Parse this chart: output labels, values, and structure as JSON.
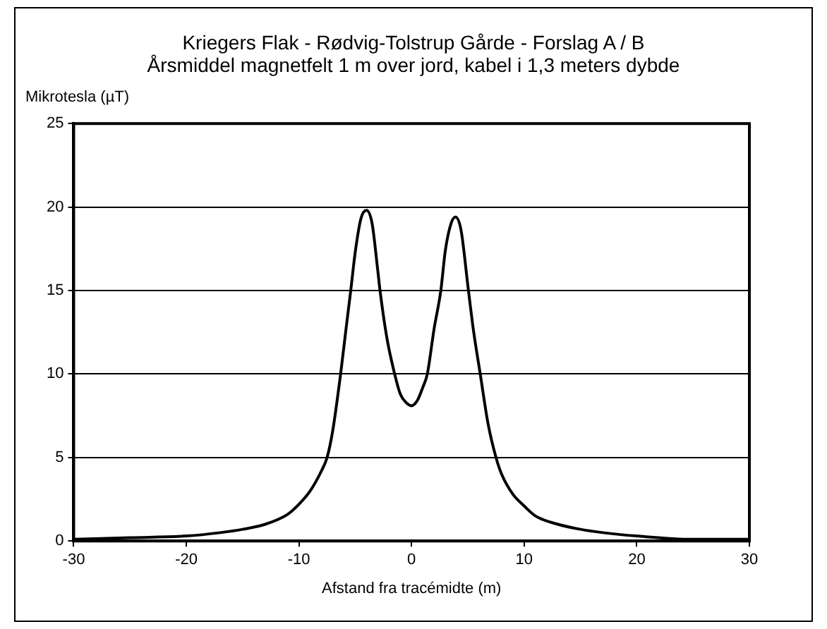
{
  "chart_data": {
    "type": "line",
    "title": "Kriegers Flak - Rødvig-Tolstrup Gårde - Forslag A / B",
    "subtitle": "Årsmiddel magnetfelt 1 m over jord, kabel i 1,3 meters dybde",
    "xlabel": "Afstand fra tracémidte (m)",
    "ylabel": "Mikrotesla (µT)",
    "series": [
      {
        "color": "#000000",
        "x": [
          -30,
          -25,
          -20,
          -17,
          -15,
          -13,
          -11,
          -10,
          -9,
          -8,
          -7.5,
          -7,
          -6.3,
          -5.8,
          -5.4,
          -5,
          -4.5,
          -4,
          -3.5,
          -3,
          -2.8,
          -2.2,
          -1.5,
          -1,
          -0.5,
          0,
          0.5,
          1,
          1.4,
          2,
          2.6,
          3,
          3.5,
          3.9,
          4.4,
          5,
          5.5,
          6.1,
          6.8,
          7.5,
          8,
          9,
          10,
          11,
          13,
          15,
          17,
          20,
          25,
          30
        ],
        "values": [
          0.1,
          0.2,
          0.3,
          0.5,
          0.7,
          1.0,
          1.6,
          2.2,
          3.0,
          4.2,
          5.0,
          6.6,
          10.0,
          12.8,
          15.0,
          17.3,
          19.3,
          19.8,
          19.0,
          16.2,
          15.0,
          12.2,
          10.0,
          8.8,
          8.3,
          8.1,
          8.4,
          9.2,
          10.0,
          12.7,
          15.0,
          17.4,
          19.0,
          19.4,
          18.6,
          15.3,
          12.6,
          10.0,
          7.0,
          5.0,
          4.0,
          2.8,
          2.1,
          1.5,
          1.0,
          0.7,
          0.5,
          0.3,
          0.1,
          0.1
        ]
      }
    ],
    "xlim": [
      -30,
      30
    ],
    "xticks": [
      -30,
      -20,
      -10,
      0,
      10,
      20,
      30
    ],
    "ylim": [
      0,
      25
    ],
    "yticks": [
      0,
      5,
      10,
      15,
      20,
      25
    ],
    "grid": "y",
    "legend": false,
    "marker": "none",
    "line_style": "solid"
  }
}
